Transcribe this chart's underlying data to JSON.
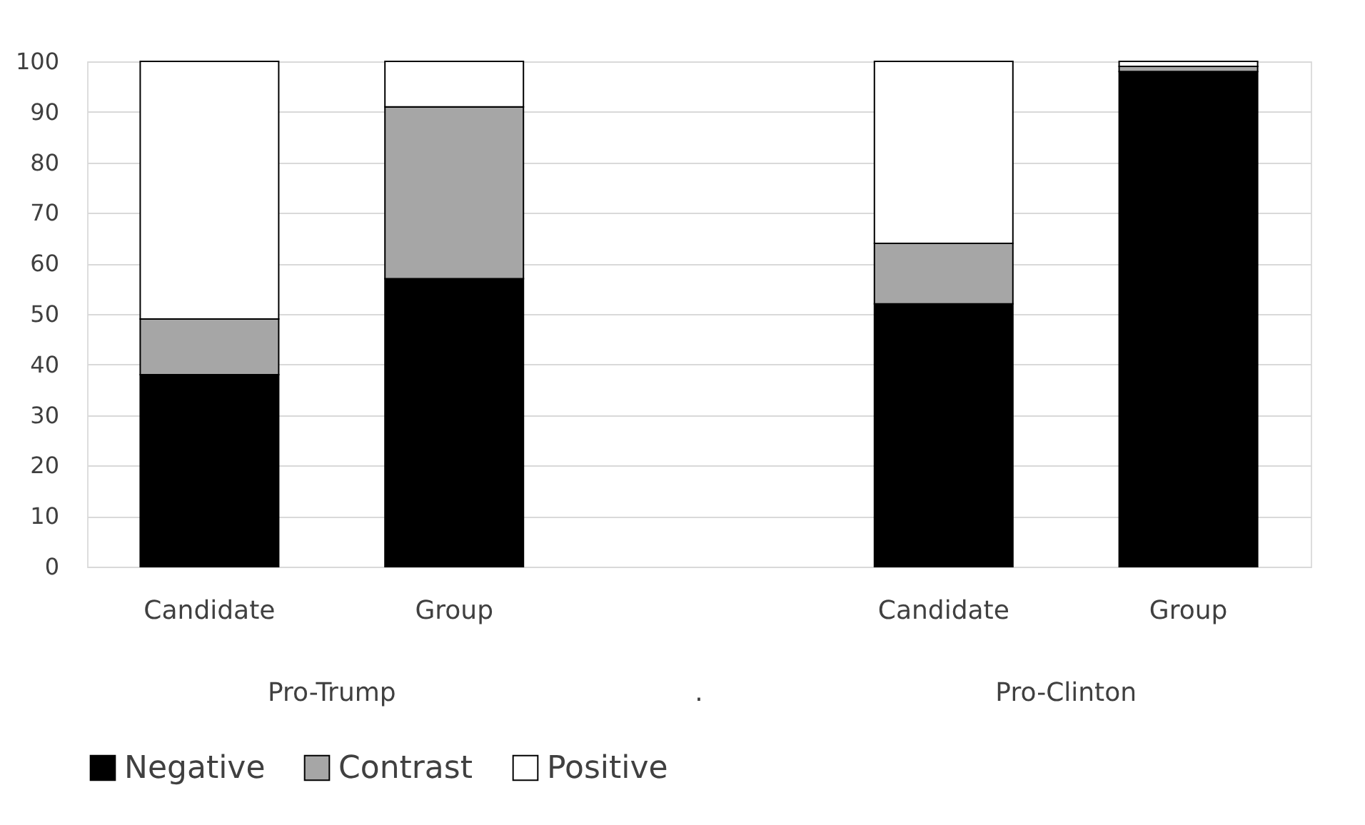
{
  "chart_data": {
    "type": "bar",
    "stacked": true,
    "categories": [
      "Candidate",
      "Group",
      null,
      "Candidate",
      "Group"
    ],
    "series": [
      {
        "name": "Negative",
        "color": "#000000",
        "values": [
          38,
          57,
          null,
          52,
          98
        ]
      },
      {
        "name": "Contrast",
        "color": "#a6a6a6",
        "values": [
          11,
          34,
          null,
          12,
          1
        ]
      },
      {
        "name": "Positive",
        "color": "#ffffff",
        "values": [
          51,
          9,
          null,
          36,
          1
        ]
      }
    ],
    "ylim": [
      0,
      100
    ],
    "yticks": [
      0,
      10,
      20,
      30,
      40,
      50,
      60,
      70,
      80,
      90,
      100
    ],
    "grid": "y",
    "legend": "bottom",
    "annotations": [
      "Pro-Trump",
      ".",
      "Pro-Clinton"
    ]
  }
}
